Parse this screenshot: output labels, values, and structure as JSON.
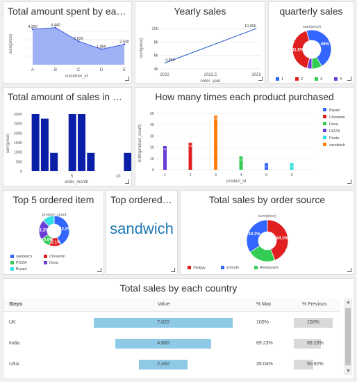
{
  "colors": {
    "blue": "#3366ff",
    "navy": "#0a1fa8",
    "red": "#e02020",
    "green": "#33cc55",
    "purple": "#6a3dd6",
    "cyan": "#33e0e0",
    "orange": "#ff7f0e",
    "area": "#8ea4f5"
  },
  "card1": {
    "title": "Total amount spent by each customer",
    "xlabel": "customer_id",
    "ylabel": "sum(price)",
    "categories": [
      "A",
      "B",
      "C",
      "D",
      "E"
    ],
    "values": [
      4260,
      4440,
      2820,
      1860,
      2440
    ],
    "labels": [
      "4,260",
      "4,440",
      "2,820",
      "1,860",
      "2,440"
    ]
  },
  "card2": {
    "title": "Yearly sales",
    "xlabel": "order_year",
    "ylabel": "sum(price)",
    "yticks": [
      "10k",
      "8k",
      "6k",
      "4k"
    ],
    "xticks": [
      "2022",
      "2022.5",
      "2023"
    ],
    "start_label": "4,860",
    "end_label": "10,000"
  },
  "card3": {
    "title": "quarterly sales",
    "subtitle": "sum(price)",
    "slices": [
      {
        "label": "1",
        "value": 41.5,
        "text": "41.5%"
      },
      {
        "label": "2",
        "value": 46,
        "text": "46%"
      },
      {
        "label": "3",
        "value": 8.5,
        "text": ""
      },
      {
        "label": "4",
        "value": 4,
        "text": ""
      }
    ],
    "legend": [
      "1",
      "2",
      "3",
      "4"
    ]
  },
  "card4": {
    "title": "Total amount of sales in each month",
    "xlabel": "order_month",
    "ylabel": "sum(price)",
    "yticks": [
      "3000",
      "2500",
      "2000",
      "1500",
      "1000",
      "500",
      "0"
    ],
    "xticks": [
      "5",
      "10"
    ],
    "x": [
      1,
      2,
      3,
      5,
      6,
      7,
      11
    ],
    "values": [
      3000,
      2760,
      960,
      3000,
      3000,
      960,
      960
    ]
  },
  "card5": {
    "title": "How many times each product purchased",
    "xlabel": "product_id",
    "ylabel": "SUM(product_count)",
    "yticks": [
      "50",
      "40",
      "30",
      "20",
      "10",
      "0"
    ],
    "xticks": [
      "1",
      "2",
      "3",
      "4",
      "5",
      "6"
    ],
    "bars": [
      {
        "x": 1,
        "value": 21,
        "label": "21"
      },
      {
        "x": 2,
        "value": 24,
        "label": "24"
      },
      {
        "x": 3,
        "value": 48,
        "label": "48"
      },
      {
        "x": 4,
        "value": 12,
        "label": "12"
      },
      {
        "x": 5,
        "value": 6,
        "label": "6"
      },
      {
        "x": 6,
        "value": 6,
        "label": "6"
      }
    ],
    "legend": [
      "Bryani",
      "Chowmin",
      "Dosa",
      "PIZZA",
      "Pasta",
      "sandwich"
    ]
  },
  "card6": {
    "title": "Top 5 ordered item",
    "subtitle": "product_count",
    "slices": [
      {
        "label": "sandwich",
        "value": 43.2,
        "text": "43.2%"
      },
      {
        "label": "Chowmin",
        "value": 12.1,
        "text": "12.1%"
      },
      {
        "label": "PIZZA",
        "value": 10.6,
        "text": "10.6%"
      },
      {
        "label": "Dosa",
        "value": 21.2,
        "text": "21.2%"
      },
      {
        "label": "Bryani",
        "value": 12.9,
        "text": ""
      }
    ],
    "legend": [
      "sandwich",
      "Chowmin",
      "PIZZA",
      "Dosa",
      "Bryani"
    ]
  },
  "card7": {
    "title": "Top ordered item",
    "value": "sandwich"
  },
  "card8": {
    "title": "Total sales by order source",
    "subtitle": "sum(price)",
    "slices": [
      {
        "label": "Swiggy",
        "value": 44.1,
        "text": "44.1%"
      },
      {
        "label": "Restaurant",
        "value": 21.6,
        "text": ""
      },
      {
        "label": "zomato",
        "value": 34.3,
        "text": "34.3%"
      }
    ],
    "legend": [
      "Swiggy",
      "zomato",
      "Restaurant"
    ]
  },
  "card9": {
    "title": "Total sales by each country",
    "headers": {
      "steps": "Steps",
      "value": "Value",
      "max": "% Max",
      "prev": "% Previous"
    },
    "rows": [
      {
        "step": "UK",
        "value": 7020,
        "value_text": "7,020",
        "max": "100%",
        "prev": "100%"
      },
      {
        "step": "India",
        "value": 4860,
        "value_text": "4,860",
        "max": "69.23%",
        "prev": "69.23%"
      },
      {
        "step": "USA",
        "value": 2460,
        "value_text": "2,460",
        "max": "35.04%",
        "prev": "50.62%"
      }
    ]
  },
  "chart_data": [
    {
      "type": "area",
      "title": "Total amount spent by each customer",
      "xlabel": "customer_id",
      "ylabel": "sum(price)",
      "categories": [
        "A",
        "B",
        "C",
        "D",
        "E"
      ],
      "values": [
        4260,
        4440,
        2820,
        1860,
        2440
      ]
    },
    {
      "type": "line",
      "title": "Yearly sales",
      "xlabel": "order_year",
      "ylabel": "sum(price)",
      "x": [
        2022,
        2023
      ],
      "values": [
        4860,
        10000
      ]
    },
    {
      "type": "pie",
      "title": "quarterly sales",
      "categories": [
        "1",
        "2",
        "3",
        "4"
      ],
      "values": [
        41.5,
        46,
        8.5,
        4
      ]
    },
    {
      "type": "bar",
      "title": "Total amount of sales in each month",
      "xlabel": "order_month",
      "ylabel": "sum(price)",
      "x": [
        1,
        2,
        3,
        5,
        6,
        7,
        11
      ],
      "values": [
        3000,
        2760,
        960,
        3000,
        3000,
        960,
        960
      ],
      "ylim": [
        0,
        3000
      ]
    },
    {
      "type": "bar",
      "title": "How many times each product purchased",
      "xlabel": "product_id",
      "ylabel": "SUM(product_count)",
      "x": [
        1,
        2,
        3,
        4,
        5,
        6
      ],
      "values": [
        21,
        24,
        48,
        12,
        6,
        6
      ]
    },
    {
      "type": "pie",
      "title": "Top 5 ordered item",
      "categories": [
        "sandwich",
        "Chowmin",
        "PIZZA",
        "Dosa",
        "Bryani"
      ],
      "values": [
        43.2,
        12.1,
        10.6,
        21.2,
        12.9
      ]
    },
    {
      "type": "pie",
      "title": "Total sales by order source",
      "categories": [
        "Swiggy",
        "Restaurant",
        "zomato"
      ],
      "values": [
        44.1,
        21.6,
        34.3
      ]
    },
    {
      "type": "table",
      "title": "Total sales by each country",
      "categories": [
        "UK",
        "India",
        "USA"
      ],
      "values": [
        7020,
        4860,
        2460
      ]
    }
  ]
}
